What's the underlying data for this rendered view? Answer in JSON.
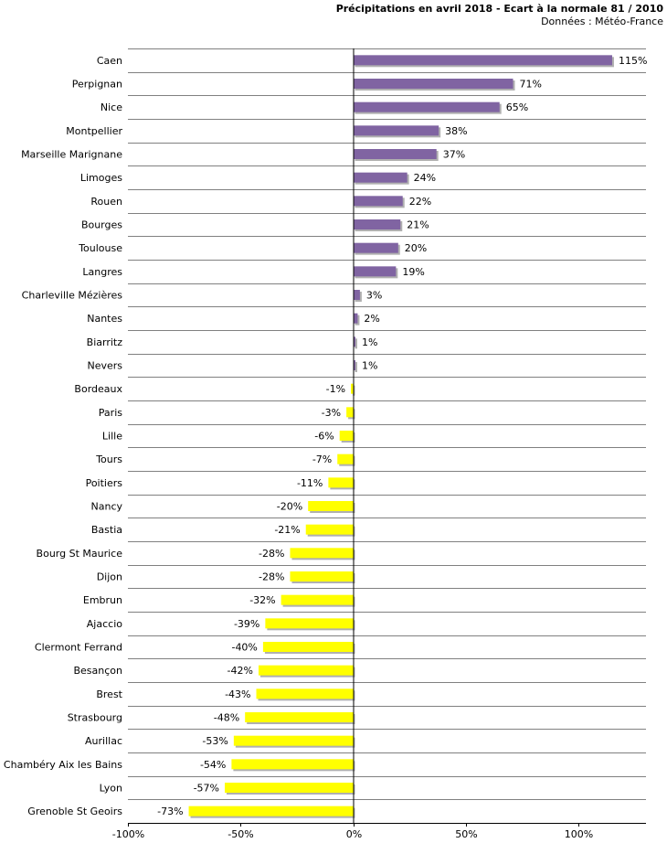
{
  "chart_data": {
    "type": "bar",
    "orientation": "horizontal",
    "title": "Précipitations en avril 2018 - Ecart à la normale 81 / 2010",
    "subtitle": "Données : Météo-France",
    "xlim": [
      -100,
      130
    ],
    "xticks": [
      -100,
      -50,
      0,
      50,
      100
    ],
    "xtick_labels": [
      "-100%",
      "-50%",
      "0%",
      "50%",
      "100%"
    ],
    "grid": "horizontal",
    "colors": {
      "positive": "#8064a2",
      "negative": "#ffff00",
      "shadow": "#b0b0b0",
      "grid": "#808080",
      "axis": "#000000"
    },
    "categories": [
      "Caen",
      "Perpignan",
      "Nice",
      "Montpellier",
      "Marseille Marignane",
      "Limoges",
      "Rouen",
      "Bourges",
      "Toulouse",
      "Langres",
      "Charleville Mézières",
      "Nantes",
      "Biarritz",
      "Nevers",
      "Bordeaux",
      "Paris",
      "Lille",
      "Tours",
      "Poitiers",
      "Nancy",
      "Bastia",
      "Bourg St Maurice",
      "Dijon",
      "Embrun",
      "Ajaccio",
      "Clermont Ferrand",
      "Besançon",
      "Brest",
      "Strasbourg",
      "Aurillac",
      "Chambéry Aix les Bains",
      "Lyon",
      "Grenoble St Geoirs"
    ],
    "values": [
      115,
      71,
      65,
      38,
      37,
      24,
      22,
      21,
      20,
      19,
      3,
      2,
      1,
      1,
      -1,
      -3,
      -6,
      -7,
      -11,
      -20,
      -21,
      -28,
      -28,
      -32,
      -39,
      -40,
      -42,
      -43,
      -48,
      -53,
      -54,
      -57,
      -73
    ],
    "labels": [
      "115%",
      "71%",
      "65%",
      "38%",
      "37%",
      "24%",
      "22%",
      "21%",
      "20%",
      "19%",
      "3%",
      "2%",
      "1%",
      "1%",
      "-1%",
      "-3%",
      "-6%",
      "-7%",
      "-11%",
      "-20%",
      "-21%",
      "-28%",
      "-28%",
      "-32%",
      "-39%",
      "-40%",
      "-42%",
      "-43%",
      "-48%",
      "-53%",
      "-54%",
      "-57%",
      "-73%"
    ]
  }
}
